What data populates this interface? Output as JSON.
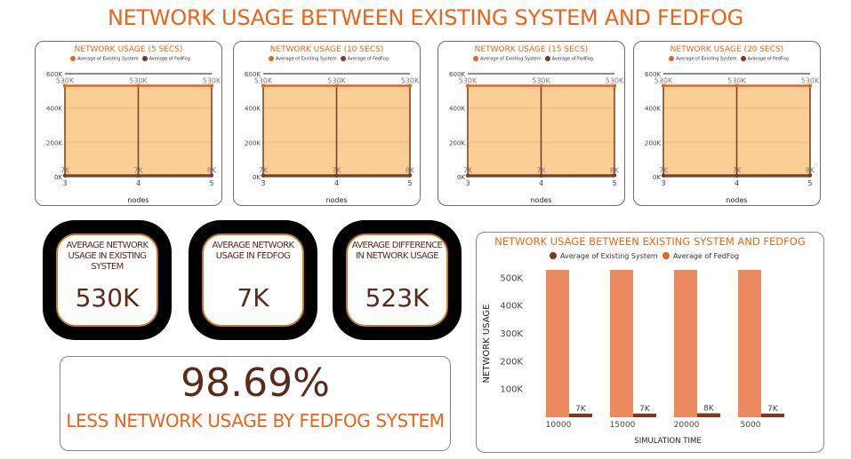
{
  "page_title": "NETWORK USAGE BETWEEN EXISTING SYSTEM AND FEDFOG",
  "colors": {
    "existing": "#e8651a",
    "fedfog": "#7a3b1e",
    "fill": "#f9c98a",
    "bar": "#eb8a5e",
    "title": "#e8651a",
    "dark": "#5a2a1a"
  },
  "small_charts": [
    {
      "title": "NETWORK USAGE (5 SECS)",
      "legend": [
        "Average of Existing System",
        "Average of FedFog"
      ],
      "xlabel": "nodes",
      "yticks": [
        "0K",
        "200K",
        "400K",
        "600K"
      ],
      "ymax": 600,
      "chart_data": {
        "type": "area",
        "x": [
          "3",
          "4",
          "5"
        ],
        "series": [
          {
            "name": "Average of Existing System",
            "values": [
              530,
              530,
              530
            ],
            "labels": [
              "530K",
              "530K",
              "530K"
            ]
          },
          {
            "name": "Average of FedFog",
            "values": [
              7,
              7,
              8
            ],
            "labels": [
              "7K",
              "7K",
              "8K"
            ]
          }
        ]
      }
    },
    {
      "title": "NETWORK USAGE (10 SECS)",
      "legend": [
        "Average of Existing System",
        "Average of FedFog"
      ],
      "xlabel": "nodes",
      "yticks": [
        "0K",
        "200K",
        "400K",
        "600K"
      ],
      "ymax": 600,
      "chart_data": {
        "type": "area",
        "x": [
          "3",
          "4",
          "5"
        ],
        "series": [
          {
            "name": "Average of Existing System",
            "values": [
              530,
              530,
              530
            ],
            "labels": [
              "530K",
              "530K",
              "530K"
            ]
          },
          {
            "name": "Average of FedFog",
            "values": [
              7,
              7,
              8
            ],
            "labels": [
              "7K",
              "7K",
              "8K"
            ]
          }
        ]
      }
    },
    {
      "title": "NETWORK USAGE (15 SECS)",
      "legend": [
        "Average of Existing System",
        "Average of FedFog"
      ],
      "xlabel": "nodes",
      "yticks": [
        "0K",
        "200K",
        "400K",
        "600K"
      ],
      "ymax": 600,
      "chart_data": {
        "type": "area",
        "x": [
          "3",
          "4",
          "5"
        ],
        "series": [
          {
            "name": "Average of Existing System",
            "values": [
              530,
              530,
              530
            ],
            "labels": [
              "530K",
              "530K",
              "530K"
            ]
          },
          {
            "name": "Average of FedFog",
            "values": [
              7,
              7,
              8
            ],
            "labels": [
              "7K",
              "7K",
              "8K"
            ]
          }
        ]
      }
    },
    {
      "title": "NETWORK USAGE (20 SECS)",
      "legend": [
        "Average of Existing System",
        "Average of FedFog"
      ],
      "xlabel": "nodes",
      "yticks": [
        "0K",
        "200K",
        "400K",
        "600K"
      ],
      "ymax": 600,
      "chart_data": {
        "type": "area",
        "x": [
          "3",
          "4",
          "5"
        ],
        "series": [
          {
            "name": "Average of Existing System",
            "values": [
              530,
              530,
              530
            ],
            "labels": [
              "530K",
              "530K",
              "530K"
            ]
          },
          {
            "name": "Average of FedFog",
            "values": [
              7,
              7,
              8
            ],
            "labels": [
              "7K",
              "7K",
              "8K"
            ]
          }
        ]
      }
    }
  ],
  "kpis": [
    {
      "label": "AVERAGE NETWORK USAGE IN EXISTING SYSTEM",
      "value": "530K"
    },
    {
      "label": "AVERAGE NETWORK USAGE IN FEDFOG",
      "value": "7K"
    },
    {
      "label": "AVERAGE DIFFERENCE IN NETWORK USAGE",
      "value": "523K"
    }
  ],
  "summary": {
    "value": "98.69%",
    "text": "LESS NETWORK USAGE BY FEDFOG SYSTEM"
  },
  "chart_data": {
    "type": "bar",
    "title": "NETWORK USAGE BETWEEN EXISTING SYSTEM AND FEDFOG",
    "legend": [
      "Average of Existing System",
      "Average of FedFog"
    ],
    "xlabel": "SIMULATION TIME",
    "ylabel": "NETWORK USAGE",
    "yticks": [
      "100K",
      "200K",
      "300K",
      "400K",
      "500K"
    ],
    "ylim": [
      0,
      530
    ],
    "categories": [
      "10000",
      "15000",
      "20000",
      "5000"
    ],
    "series": [
      {
        "name": "Average of Existing System",
        "values": [
          530,
          530,
          530,
          530
        ]
      },
      {
        "name": "Average of FedFog",
        "values": [
          7,
          7,
          8,
          7
        ],
        "labels": [
          "7K",
          "7K",
          "8K",
          "7K"
        ]
      }
    ]
  }
}
